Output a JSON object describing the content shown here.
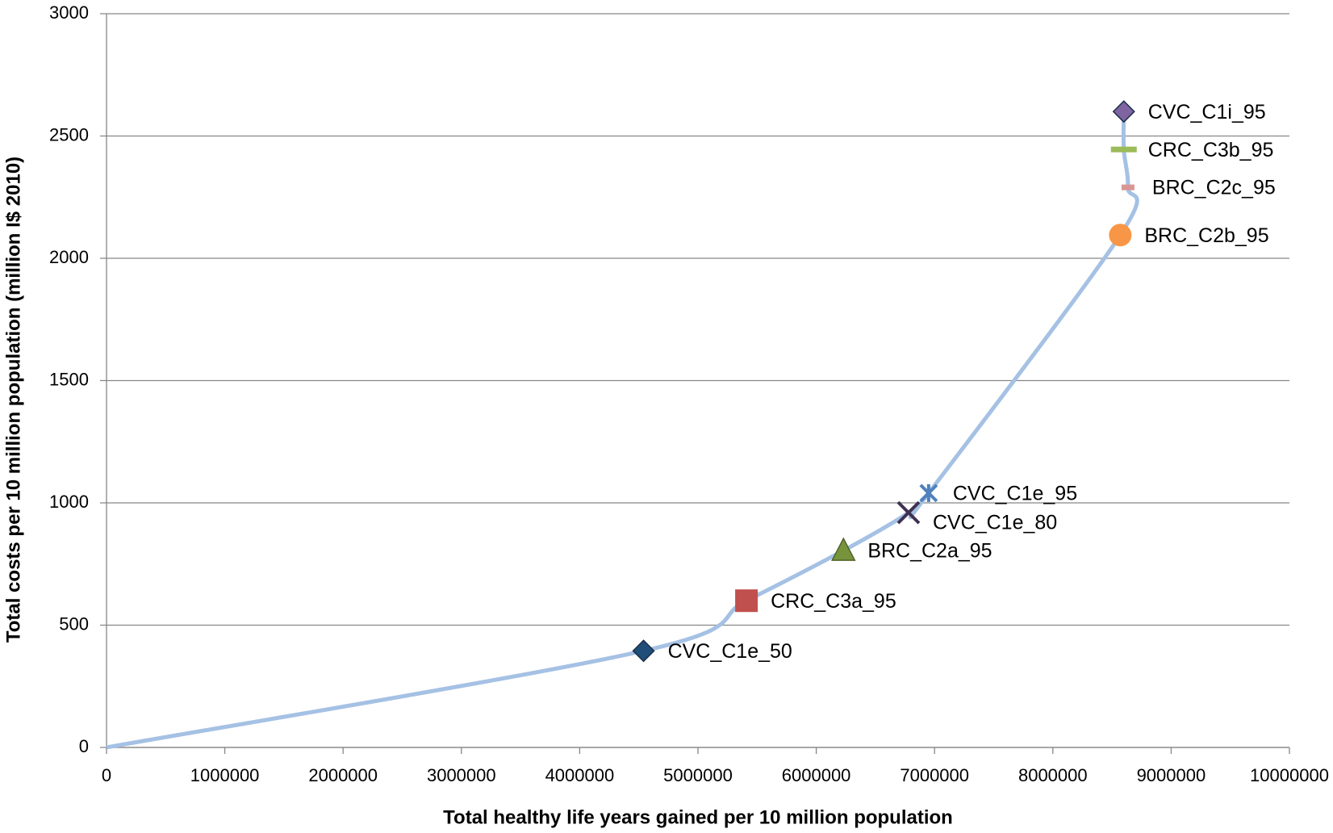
{
  "chart_data": {
    "type": "scatter",
    "x_label": "Total healthy life years gained per 10 million population",
    "y_label": "Total costs per 10 million population (million I$ 2010)",
    "xlim": [
      0,
      10000000
    ],
    "ylim": [
      0,
      3000
    ],
    "xticks": [
      0,
      1000000,
      2000000,
      3000000,
      4000000,
      5000000,
      6000000,
      7000000,
      8000000,
      9000000,
      10000000
    ],
    "yticks": [
      0,
      500,
      1000,
      1500,
      2000,
      2500,
      3000
    ],
    "grid": true,
    "line_color": "#a5c1e4",
    "points": {
      "x": [
        0,
        4540000,
        5410000,
        6230000,
        6780000,
        6950000,
        8570000,
        8635000,
        8600000,
        8600000
      ],
      "values": [
        0,
        395,
        600,
        805,
        960,
        1040,
        2095,
        2290,
        2445,
        2600
      ],
      "labels": [
        null,
        "CVC_C1e_50",
        "CRC_C3a_95",
        "BRC_C2a_95",
        "CVC_C1e_80",
        "CVC_C1e_95",
        "BRC_C2b_95",
        "BRC_C2c_95",
        "CRC_C3b_95",
        "CVC_C1i_95"
      ],
      "markers": [
        null,
        "diamond",
        "square",
        "triangle",
        "x",
        "star",
        "circle",
        "dash",
        "dash",
        "diamond"
      ],
      "colors": [
        null,
        "#1f4e79",
        "#c0504d",
        "#77933c",
        "#3f3151",
        "#4f81bd",
        "#f79646",
        "#d99694",
        "#9bbb59",
        "#8064a2"
      ]
    }
  }
}
